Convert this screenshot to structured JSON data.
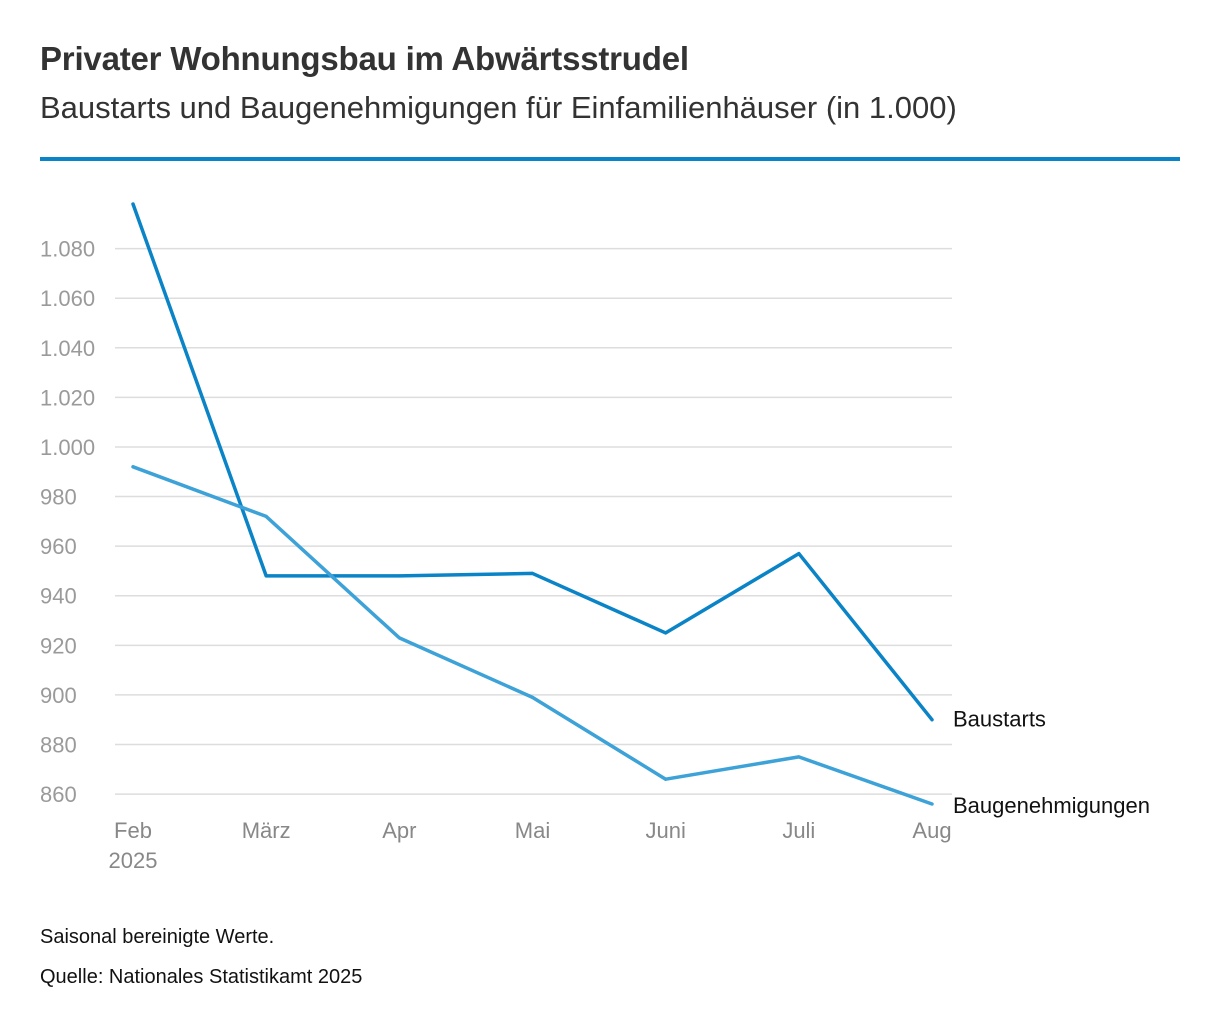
{
  "chart_data": {
    "type": "line",
    "title": "Privater Wohnungsbau im Abwärtsstrudel",
    "subtitle": "Baustarts und Baugenehmigungen für Einfamilienhäuser (in 1.000)",
    "categories": [
      "Feb",
      "März",
      "Apr",
      "Mai",
      "Juni",
      "Juli",
      "Aug"
    ],
    "category_sublabels": [
      "2025",
      "",
      "",
      "",
      "",
      "",
      ""
    ],
    "y_ticks": [
      860,
      880,
      900,
      920,
      940,
      960,
      980,
      1000,
      1020,
      1040,
      1060,
      1080
    ],
    "y_tick_labels": [
      "860",
      "880",
      "900",
      "920",
      "940",
      "960",
      "980",
      "1.000",
      "1.020",
      "1.040",
      "1.060",
      "1.080"
    ],
    "ylim": [
      856,
      1098
    ],
    "grid": true,
    "series": [
      {
        "name": "Baustarts",
        "values": [
          1098,
          948,
          948,
          949,
          925,
          957,
          890
        ],
        "color": "#0a84c6"
      },
      {
        "name": "Baugenehmigungen",
        "values": [
          992,
          972,
          923,
          899,
          866,
          875,
          856
        ],
        "color": "#3da2d8"
      }
    ]
  },
  "footer": {
    "note": "Saisonal bereinigte Werte.",
    "source": "Quelle: Nationales Statistikamt 2025"
  }
}
